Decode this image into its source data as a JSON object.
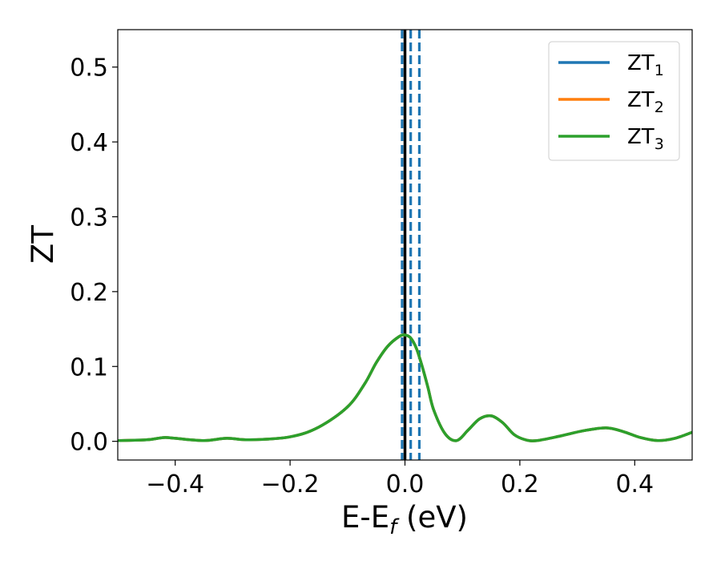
{
  "chart_data": {
    "type": "line",
    "title": "",
    "xlabel": "E-E_f (eV)",
    "ylabel": "ZT",
    "xlim": [
      -0.5,
      0.5
    ],
    "ylim": [
      -0.025,
      0.55
    ],
    "grid": false,
    "legend_position": "top-right",
    "xticks": [
      -0.4,
      -0.2,
      0.0,
      0.2,
      0.4
    ],
    "xtick_labels": [
      "−0.4",
      "−0.2",
      "0.0",
      "0.2",
      "0.4"
    ],
    "yticks": [
      0.0,
      0.1,
      0.2,
      0.3,
      0.4,
      0.5
    ],
    "ytick_labels": [
      "0.0",
      "0.1",
      "0.2",
      "0.3",
      "0.4",
      "0.5"
    ],
    "series": [
      {
        "name": "ZT1",
        "label_main": "ZT",
        "label_sub": "1",
        "color": "#1f77b4",
        "x": [
          -0.5,
          -0.45,
          -0.42,
          -0.4,
          -0.35,
          -0.31,
          -0.27,
          -0.2,
          -0.15,
          -0.1,
          -0.07,
          -0.05,
          -0.03,
          -0.01,
          0.0,
          0.01,
          0.02,
          0.03,
          0.04,
          0.05,
          0.07,
          0.09,
          0.11,
          0.13,
          0.15,
          0.17,
          0.19,
          0.21,
          0.23,
          0.27,
          0.31,
          0.35,
          0.38,
          0.41,
          0.44,
          0.47,
          0.5
        ],
        "y": [
          0.001,
          0.002,
          0.005,
          0.004,
          0.001,
          0.004,
          0.002,
          0.006,
          0.019,
          0.046,
          0.077,
          0.105,
          0.127,
          0.14,
          0.142,
          0.138,
          0.124,
          0.1,
          0.072,
          0.042,
          0.01,
          0.001,
          0.015,
          0.03,
          0.034,
          0.025,
          0.009,
          0.002,
          0.001,
          0.007,
          0.014,
          0.018,
          0.013,
          0.005,
          0.001,
          0.004,
          0.012
        ]
      },
      {
        "name": "ZT2",
        "label_main": "ZT",
        "label_sub": "2",
        "color": "#ff7f0e",
        "x": [
          -0.5,
          -0.45,
          -0.42,
          -0.4,
          -0.35,
          -0.31,
          -0.27,
          -0.2,
          -0.15,
          -0.1,
          -0.07,
          -0.05,
          -0.03,
          -0.01,
          0.0,
          0.01,
          0.02,
          0.03,
          0.04,
          0.05,
          0.07,
          0.09,
          0.11,
          0.13,
          0.15,
          0.17,
          0.19,
          0.21,
          0.23,
          0.27,
          0.31,
          0.35,
          0.38,
          0.41,
          0.44,
          0.47,
          0.5
        ],
        "y": [
          0.001,
          0.002,
          0.005,
          0.004,
          0.001,
          0.004,
          0.002,
          0.006,
          0.019,
          0.046,
          0.077,
          0.105,
          0.127,
          0.14,
          0.142,
          0.138,
          0.124,
          0.1,
          0.072,
          0.042,
          0.01,
          0.001,
          0.015,
          0.03,
          0.034,
          0.025,
          0.009,
          0.002,
          0.001,
          0.007,
          0.014,
          0.018,
          0.013,
          0.005,
          0.001,
          0.004,
          0.012
        ]
      },
      {
        "name": "ZT3",
        "label_main": "ZT",
        "label_sub": "3",
        "color": "#2ca02c",
        "x": [
          -0.5,
          -0.45,
          -0.42,
          -0.4,
          -0.35,
          -0.31,
          -0.27,
          -0.2,
          -0.15,
          -0.1,
          -0.07,
          -0.05,
          -0.03,
          -0.01,
          0.0,
          0.01,
          0.02,
          0.03,
          0.04,
          0.05,
          0.07,
          0.09,
          0.11,
          0.13,
          0.15,
          0.17,
          0.19,
          0.21,
          0.23,
          0.27,
          0.31,
          0.35,
          0.38,
          0.41,
          0.44,
          0.47,
          0.5
        ],
        "y": [
          0.001,
          0.002,
          0.005,
          0.004,
          0.001,
          0.004,
          0.002,
          0.006,
          0.019,
          0.046,
          0.077,
          0.105,
          0.127,
          0.14,
          0.142,
          0.138,
          0.124,
          0.1,
          0.072,
          0.042,
          0.01,
          0.001,
          0.015,
          0.03,
          0.034,
          0.025,
          0.009,
          0.002,
          0.001,
          0.007,
          0.014,
          0.018,
          0.013,
          0.005,
          0.001,
          0.004,
          0.012
        ]
      }
    ],
    "vlines": [
      {
        "x": 0.0,
        "color": "#000000",
        "style": "solid"
      },
      {
        "x": -0.005,
        "color": "#1f77b4",
        "style": "dashed"
      },
      {
        "x": 0.01,
        "color": "#1f77b4",
        "style": "dashed"
      },
      {
        "x": 0.025,
        "color": "#1f77b4",
        "style": "dashed"
      }
    ]
  }
}
